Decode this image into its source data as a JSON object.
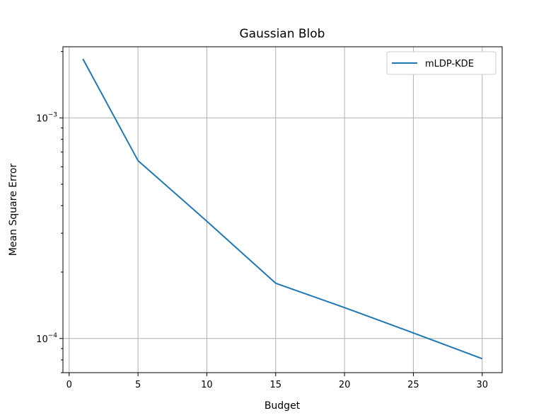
{
  "chart_data": {
    "type": "line",
    "title": "Gaussian Blob",
    "xlabel": "Budget",
    "ylabel": "Mean Square Error",
    "yscale": "log",
    "xlim": [
      -0.45,
      31.45
    ],
    "ylim": [
      7e-05,
      0.0021
    ],
    "grid": true,
    "legend_position": "top-right",
    "x_ticks": [
      0,
      5,
      10,
      15,
      20,
      25,
      30
    ],
    "x_tick_labels": [
      "0",
      "5",
      "10",
      "15",
      "20",
      "25",
      "30"
    ],
    "y_ticks": [
      0.001,
      0.0001
    ],
    "y_tick_labels": [
      {
        "base": "10",
        "exp": "−3"
      },
      {
        "base": "10",
        "exp": "−4"
      }
    ],
    "series": [
      {
        "name": "mLDP-KDE",
        "color": "#1f77b4",
        "x": [
          1,
          5,
          10,
          15,
          20,
          25,
          30
        ],
        "y": [
          0.00185,
          0.00064,
          0.00034,
          0.000178,
          0.000138,
          0.000106,
          8.1e-05
        ]
      }
    ]
  }
}
